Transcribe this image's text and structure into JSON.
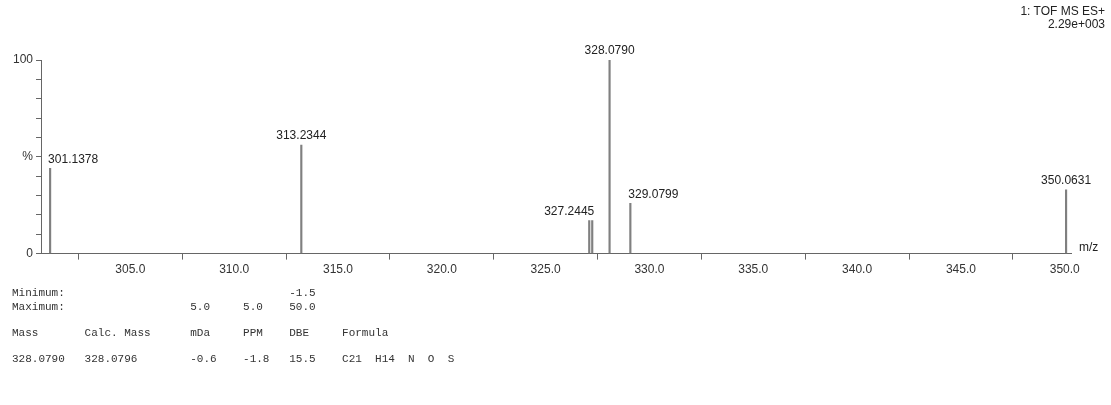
{
  "chart_data": {
    "type": "bar",
    "xlabel": "m/z",
    "x": [
      301.1378,
      313.2344,
      327.1,
      327.2445,
      328.079,
      329.0799,
      350.0631
    ],
    "values": [
      44,
      56,
      17,
      17,
      100,
      26,
      33
    ],
    "color": "#808080",
    "xlim": [
      300.7,
      350.3
    ],
    "xticks": [
      {
        "value": 305,
        "label": "305.0"
      },
      {
        "value": 310,
        "label": "310.0"
      },
      {
        "value": 315,
        "label": "315.0"
      },
      {
        "value": 320,
        "label": "320.0"
      },
      {
        "value": 325,
        "label": "325.0"
      },
      {
        "value": 330,
        "label": "330.0"
      },
      {
        "value": 335,
        "label": "335.0"
      },
      {
        "value": 340,
        "label": "340.0"
      },
      {
        "value": 345,
        "label": "345.0"
      },
      {
        "value": 350,
        "label": "350.0"
      }
    ],
    "ylim": [
      0,
      100
    ],
    "yticks": [
      0,
      {
        "value": 10,
        "label": null
      },
      {
        "value": 20,
        "label": null
      },
      {
        "value": 30,
        "label": null
      },
      {
        "value": 40,
        "label": null
      },
      {
        "value": 50,
        "label": "%"
      },
      {
        "value": 60,
        "label": null
      },
      {
        "value": 70,
        "label": null
      },
      {
        "value": 80,
        "label": null
      },
      {
        "value": 90,
        "label": null
      },
      100
    ],
    "grid": false,
    "legend": false,
    "annotations": [
      {
        "text": "301.1378",
        "x": 301.1378,
        "y": 44
      },
      {
        "text": "313.2344",
        "x": 313.2344,
        "y": 56
      },
      {
        "text": "327.2445",
        "x": 327.2445,
        "y": 17
      },
      {
        "text": "328.0790",
        "x": 328.079,
        "y": 100
      },
      {
        "text": "329.0799",
        "x": 329.0799,
        "y": 26
      },
      {
        "text": "350.0631",
        "x": 350.0631,
        "y": 33
      },
      "1: TOF MS ES+",
      "2.29e+003",
      "Minimum:                                  -1.5",
      "Maximum:                   5.0     5.0    50.0",
      "Mass       Calc. Mass      mDa     PPM    DBE     Formula",
      "328.0790   328.0796        -0.6    -1.8   15.5    C21  H14  N  O  S"
    ]
  }
}
